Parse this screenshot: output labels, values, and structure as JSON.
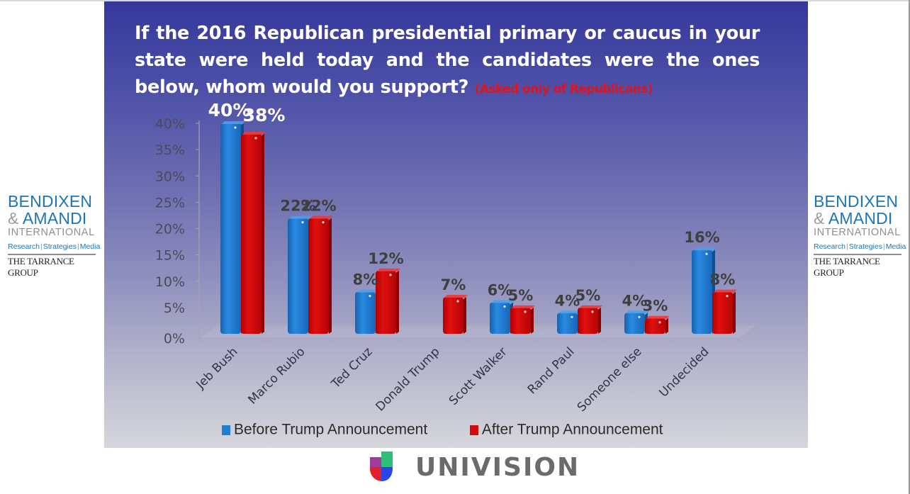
{
  "slide": {
    "question": "If the 2016 Republican presidential primary or caucus in your state were held today and the candidates were the ones below, whom would you support?",
    "note": "(Asked only of Republicans)"
  },
  "logos": {
    "pollster": {
      "line1": "BENDIXEN",
      "amp": "&",
      "line2": "AMANDI",
      "line3": "INTERNATIONAL",
      "tagline": [
        "Research",
        "Strategies",
        "Media"
      ],
      "partner": "THE TARRANCE GROUP"
    },
    "sponsor": "UNIVISION"
  },
  "colors": {
    "before": "#1f7fd0",
    "after": "#d10a0a",
    "label_dark": "#3f3f3f",
    "label_light": "#ffffff"
  },
  "chart_data": {
    "type": "bar",
    "title": "If the 2016 Republican presidential primary or caucus in your state were held today and the candidates were the ones below, whom would you support?",
    "subtitle": "(Asked only of Republicans)",
    "xlabel": "",
    "ylabel": "",
    "ylim": [
      0,
      40
    ],
    "yticks": [
      "0%",
      "5%",
      "10%",
      "15%",
      "20%",
      "25%",
      "30%",
      "35%",
      "40%"
    ],
    "grid": false,
    "legend_position": "bottom",
    "categories": [
      "Jeb Bush",
      "Marco Rubio",
      "Ted Cruz",
      "Donald Trump",
      "Scott Walker",
      "Rand Paul",
      "Someone else",
      "Undecided"
    ],
    "series": [
      {
        "name": "Before Trump Announcement",
        "values": [
          40,
          22,
          8,
          null,
          6,
          4,
          4,
          16
        ],
        "labels": [
          "40%",
          "22%",
          "8%",
          "",
          "6%",
          "4%",
          "4%",
          "16%"
        ]
      },
      {
        "name": "After Trump Announcement",
        "values": [
          38,
          22,
          12,
          7,
          5,
          5,
          3,
          8
        ],
        "labels": [
          "38%",
          "22%",
          "12%",
          "7%",
          "5%",
          "5%",
          "3%",
          "8%"
        ]
      }
    ]
  }
}
